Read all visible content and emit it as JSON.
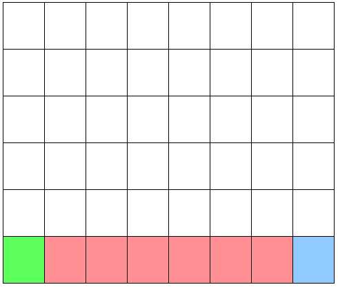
{
  "grid": {
    "columns": 8,
    "rows": 6,
    "empty_color": "#ffffff",
    "line_color": "#000000",
    "colored_cells": [
      {
        "row": 6,
        "col": 1,
        "kind": "start",
        "color": "#5cff5c"
      },
      {
        "row": 6,
        "col": 2,
        "kind": "hazard",
        "color": "#ff8f95"
      },
      {
        "row": 6,
        "col": 3,
        "kind": "hazard",
        "color": "#ff8f95"
      },
      {
        "row": 6,
        "col": 4,
        "kind": "hazard",
        "color": "#ff8f95"
      },
      {
        "row": 6,
        "col": 5,
        "kind": "hazard",
        "color": "#ff8f95"
      },
      {
        "row": 6,
        "col": 6,
        "kind": "hazard",
        "color": "#ff8f95"
      },
      {
        "row": 6,
        "col": 7,
        "kind": "hazard",
        "color": "#ff8f95"
      },
      {
        "row": 6,
        "col": 8,
        "kind": "goal",
        "color": "#90caff"
      }
    ]
  }
}
